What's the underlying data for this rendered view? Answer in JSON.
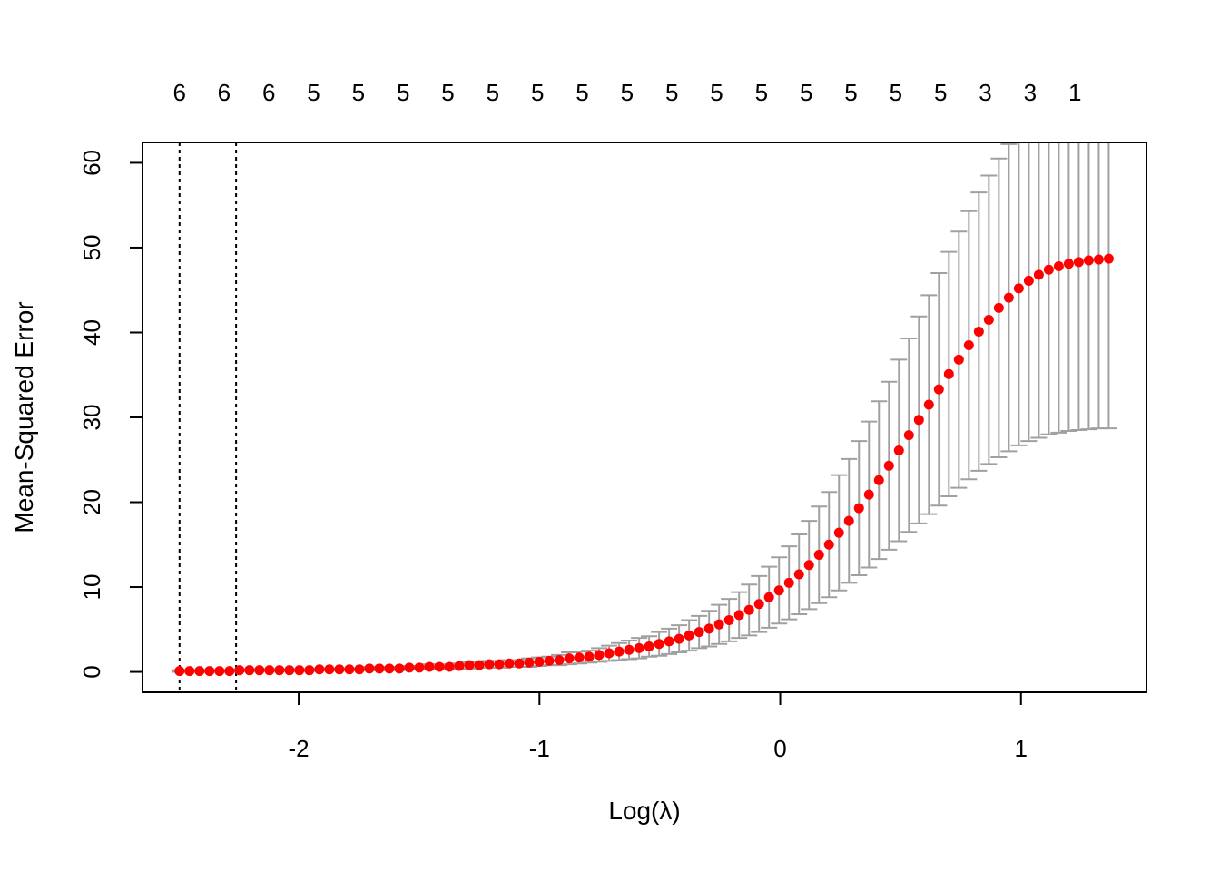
{
  "chart_data": {
    "type": "scatter",
    "xlabel": "Log(λ)",
    "ylabel": "Mean-Squared Error",
    "xlim": [
      -2.6488,
      1.5212
    ],
    "ylim": [
      -2.4,
      62.4
    ],
    "x_ticks": [
      -2,
      -1,
      0,
      1
    ],
    "x_tick_labels": [
      "-2",
      "-1",
      "0",
      "1"
    ],
    "y_ticks": [
      0,
      10,
      20,
      30,
      40,
      50,
      60
    ],
    "y_tick_labels": [
      "0",
      "10",
      "20",
      "30",
      "40",
      "50",
      "60"
    ],
    "top_axis": {
      "label": "",
      "positions": [
        -2.495,
        -2.31,
        -2.124,
        -1.938,
        -1.752,
        -1.566,
        -1.38,
        -1.194,
        -1.008,
        -0.822,
        -0.636,
        -0.45,
        -0.264,
        -0.078,
        0.108,
        0.294,
        0.48,
        0.666,
        0.852,
        1.038,
        1.224
      ],
      "labels": [
        "6",
        "6",
        "6",
        "5",
        "5",
        "5",
        "5",
        "5",
        "5",
        "5",
        "5",
        "5",
        "5",
        "5",
        "5",
        "5",
        "5",
        "5",
        "3",
        "3",
        "1"
      ]
    },
    "vertical_reference_lines": [
      -2.495,
      -2.26
    ],
    "points": {
      "x": [
        -2.495,
        -2.4535,
        -2.412,
        -2.3705,
        -2.329,
        -2.2875,
        -2.246,
        -2.2045,
        -2.163,
        -2.1215,
        -2.08,
        -2.0385,
        -1.997,
        -1.9555,
        -1.914,
        -1.8725,
        -1.831,
        -1.7895,
        -1.748,
        -1.7065,
        -1.665,
        -1.6235,
        -1.582,
        -1.5405,
        -1.499,
        -1.4575,
        -1.416,
        -1.3745,
        -1.333,
        -1.2915,
        -1.25,
        -1.2085,
        -1.167,
        -1.1255,
        -1.084,
        -1.0425,
        -1.001,
        -0.9595,
        -0.918,
        -0.8765,
        -0.835,
        -0.7935,
        -0.752,
        -0.7105,
        -0.669,
        -0.6275,
        -0.586,
        -0.5445,
        -0.503,
        -0.4615,
        -0.42,
        -0.3785,
        -0.337,
        -0.2955,
        -0.254,
        -0.2125,
        -0.171,
        -0.1295,
        -0.088,
        -0.0465,
        -0.005,
        0.0365,
        0.078,
        0.1195,
        0.161,
        0.2025,
        0.244,
        0.2855,
        0.327,
        0.3685,
        0.41,
        0.4515,
        0.493,
        0.5345,
        0.576,
        0.6175,
        0.659,
        0.7005,
        0.742,
        0.7835,
        0.825,
        0.8665,
        0.908,
        0.9495,
        0.991,
        1.0325,
        1.074,
        1.1155,
        1.157,
        1.1985,
        1.24,
        1.2815,
        1.323,
        1.3645
      ],
      "y": [
        0.1,
        0.1,
        0.1,
        0.1,
        0.1,
        0.1,
        0.2,
        0.2,
        0.2,
        0.2,
        0.2,
        0.2,
        0.2,
        0.2,
        0.3,
        0.3,
        0.3,
        0.3,
        0.3,
        0.4,
        0.4,
        0.4,
        0.4,
        0.5,
        0.5,
        0.6,
        0.6,
        0.6,
        0.7,
        0.8,
        0.8,
        0.9,
        0.9,
        1.0,
        1.0,
        1.1,
        1.2,
        1.3,
        1.4,
        1.6,
        1.7,
        1.8,
        2.0,
        2.2,
        2.4,
        2.6,
        2.8,
        3.0,
        3.3,
        3.6,
        3.9,
        4.3,
        4.7,
        5.1,
        5.6,
        6.1,
        6.7,
        7.3,
        8.0,
        8.8,
        9.6,
        10.5,
        11.5,
        12.6,
        13.8,
        15.0,
        16.4,
        17.8,
        19.3,
        20.9,
        22.6,
        24.3,
        26.1,
        27.9,
        29.7,
        31.5,
        33.3,
        35.1,
        36.8,
        38.5,
        40.1,
        41.5,
        42.9,
        44.1,
        45.2,
        46.1,
        46.8,
        47.4,
        47.8,
        48.1,
        48.3,
        48.5,
        48.6,
        48.7
      ],
      "lower": [
        0.0,
        0.0,
        0.0,
        0.0,
        0.0,
        0.0,
        0.1,
        0.1,
        0.1,
        0.1,
        0.1,
        0.1,
        0.1,
        0.1,
        0.2,
        0.2,
        0.2,
        0.2,
        0.2,
        0.2,
        0.2,
        0.2,
        0.2,
        0.3,
        0.3,
        0.3,
        0.3,
        0.4,
        0.4,
        0.4,
        0.5,
        0.5,
        0.5,
        0.6,
        0.6,
        0.6,
        0.7,
        0.8,
        0.8,
        0.9,
        1.0,
        1.1,
        1.2,
        1.3,
        1.4,
        1.5,
        1.6,
        1.8,
        1.9,
        2.1,
        2.3,
        2.5,
        2.8,
        3.0,
        3.3,
        3.6,
        4.0,
        4.3,
        4.7,
        5.2,
        5.7,
        6.2,
        6.8,
        7.4,
        8.1,
        8.8,
        9.6,
        10.5,
        11.4,
        12.3,
        13.3,
        14.4,
        15.4,
        16.5,
        17.5,
        18.6,
        19.6,
        20.7,
        21.7,
        22.7,
        23.7,
        24.5,
        25.3,
        26.0,
        26.7,
        27.2,
        27.6,
        28.0,
        28.2,
        28.4,
        28.5,
        28.6,
        28.7,
        28.7
      ],
      "upper": [
        0.2,
        0.2,
        0.2,
        0.2,
        0.2,
        0.2,
        0.3,
        0.3,
        0.3,
        0.3,
        0.3,
        0.3,
        0.3,
        0.3,
        0.4,
        0.4,
        0.4,
        0.4,
        0.4,
        0.6,
        0.6,
        0.6,
        0.6,
        0.7,
        0.7,
        0.9,
        0.9,
        0.8,
        1.0,
        1.2,
        1.1,
        1.3,
        1.3,
        1.4,
        1.4,
        1.6,
        1.7,
        1.8,
        2.0,
        2.3,
        2.4,
        2.5,
        2.8,
        3.1,
        3.4,
        3.7,
        4.0,
        4.2,
        4.7,
        5.1,
        5.5,
        6.1,
        6.6,
        7.2,
        7.9,
        8.6,
        9.4,
        10.3,
        11.3,
        12.4,
        13.5,
        14.8,
        16.2,
        17.8,
        19.5,
        21.2,
        23.2,
        25.1,
        27.2,
        29.5,
        31.9,
        34.2,
        36.8,
        39.3,
        41.9,
        44.4,
        47.0,
        49.5,
        51.9,
        54.3,
        56.5,
        58.5,
        60.5,
        62.2,
        63.7,
        65.0,
        66.0,
        66.8,
        67.4,
        67.8,
        68.1,
        68.4,
        68.5,
        68.7
      ]
    },
    "colors": {
      "points": "#ff0000",
      "error_bars": "#a0a0a0",
      "axes": "#000000"
    },
    "grid": false,
    "legend": "none"
  }
}
